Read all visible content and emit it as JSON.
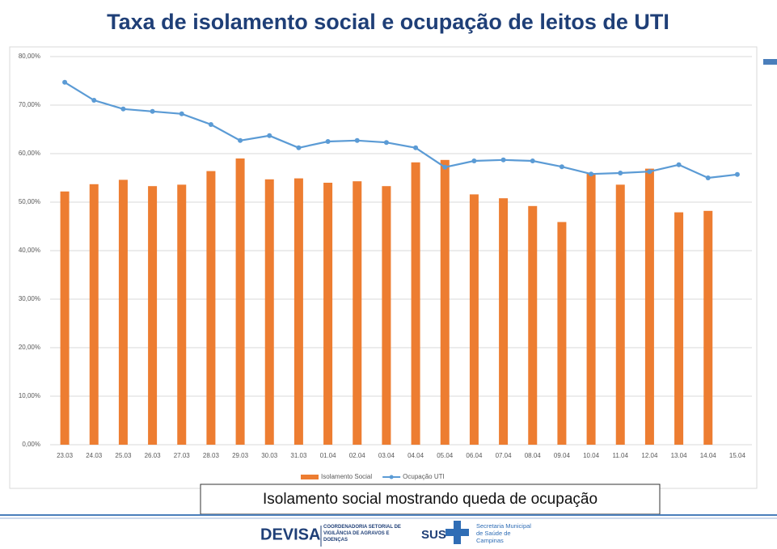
{
  "chart_data": {
    "type": "bar-line",
    "title": "Taxa de isolamento social e ocupação de leitos de UTI",
    "categories": [
      "23.03",
      "24.03",
      "25.03",
      "26.03",
      "27.03",
      "28.03",
      "29.03",
      "30.03",
      "31.03",
      "01.04",
      "02.04",
      "03.04",
      "04.04",
      "05.04",
      "06.04",
      "07.04",
      "08.04",
      "09.04",
      "10.04",
      "11.04",
      "12.04",
      "13.04",
      "14.04",
      "15.04"
    ],
    "series": [
      {
        "name": "Isolamento Social",
        "type": "bar",
        "color": "#ed7d31",
        "values": [
          52.2,
          53.7,
          54.6,
          53.3,
          53.6,
          56.4,
          59.0,
          54.7,
          54.9,
          54.0,
          54.3,
          53.3,
          58.2,
          58.7,
          51.6,
          50.8,
          49.2,
          45.9,
          56.0,
          53.6,
          56.9,
          47.9,
          48.2,
          null
        ]
      },
      {
        "name": "Ocupação UTI",
        "type": "line",
        "color": "#5b9bd5",
        "values": [
          74.7,
          71.0,
          69.2,
          68.7,
          68.2,
          66.0,
          62.7,
          63.7,
          61.2,
          62.5,
          62.7,
          62.3,
          61.2,
          57.2,
          58.5,
          58.7,
          58.5,
          57.3,
          55.8,
          56.0,
          56.3,
          57.7,
          55.0,
          55.7
        ]
      }
    ],
    "ylim": [
      0,
      80
    ],
    "yticks": [
      {
        "value": 0,
        "label": "0,00%"
      },
      {
        "value": 10,
        "label": "10,00%"
      },
      {
        "value": 20,
        "label": "20,00%"
      },
      {
        "value": 30,
        "label": "30,00%"
      },
      {
        "value": 40,
        "label": "40,00%"
      },
      {
        "value": 50,
        "label": "50,00%"
      },
      {
        "value": 60,
        "label": "60,00%"
      },
      {
        "value": 70,
        "label": "70,00%"
      },
      {
        "value": 80,
        "label": "80,00%"
      }
    ],
    "grid": true,
    "legend": "bottom"
  },
  "caption": "Isolamento social mostrando queda de ocupação",
  "footer": {
    "devisa": "DEVISA",
    "devisa_sub": "COORDENADORIA SETORIAL DE VIGILÂNCIA DE AGRAVOS E DOENÇAS",
    "sus": "SUS",
    "secretaria": "Secretaria Municipal de Saúde de Campinas"
  }
}
